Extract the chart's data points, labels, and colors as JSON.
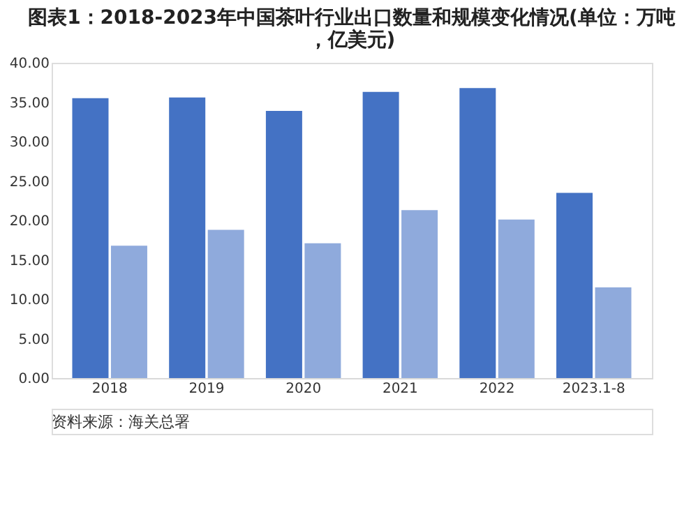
{
  "chart_data": {
    "type": "bar",
    "title": "图表1：2018-2023年中国茶叶行业出口数量和规模变化情况(单位：万吨，亿美元)",
    "categories": [
      "2018",
      "2019",
      "2020",
      "2021",
      "2022",
      "2023.1-8"
    ],
    "series": [
      {
        "color": "#4472c4",
        "values": [
          35.5,
          35.6,
          33.9,
          36.3,
          36.8,
          23.5
        ]
      },
      {
        "color": "#8faadc",
        "values": [
          16.8,
          18.8,
          17.1,
          21.3,
          20.1,
          11.5
        ]
      }
    ],
    "ylim": [
      0,
      40
    ],
    "yticks": [
      {
        "value": 0,
        "label": "0.00"
      },
      {
        "value": 5,
        "label": "5.00"
      },
      {
        "value": 10,
        "label": "10.00"
      },
      {
        "value": 15,
        "label": "15.00"
      },
      {
        "value": 20,
        "label": "20.00"
      },
      {
        "value": 25,
        "label": "25.00"
      },
      {
        "value": 30,
        "label": "30.00"
      },
      {
        "value": 35,
        "label": "35.00"
      },
      {
        "value": 40,
        "label": "40.00"
      }
    ],
    "grid": false,
    "legend": false,
    "annotations": [
      "资料来源：海关总署"
    ]
  }
}
